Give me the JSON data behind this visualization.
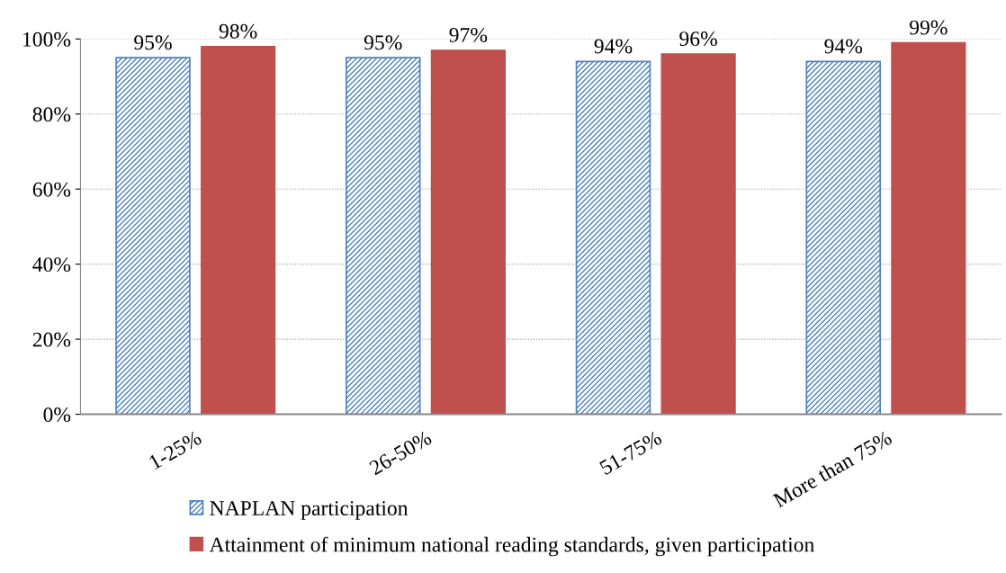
{
  "chart_data": {
    "type": "bar",
    "categories": [
      "1-25%",
      "26-50%",
      "51-75%",
      "More than 75%"
    ],
    "series": [
      {
        "name": "NAPLAN participation",
        "color": "#4f81bd",
        "values": [
          95,
          95,
          94,
          94
        ],
        "value_labels": [
          "95%",
          "95%",
          "94%",
          "94%"
        ]
      },
      {
        "name": "Attainment of minimum national reading standards, given participation",
        "color": "#c0504d",
        "values": [
          98,
          97,
          96,
          99
        ],
        "value_labels": [
          "98%",
          "97%",
          "96%",
          "99%"
        ]
      }
    ],
    "ylim": [
      0,
      100
    ],
    "yticks": [
      {
        "value": 0,
        "label": "0%"
      },
      {
        "value": 20,
        "label": "20%"
      },
      {
        "value": 40,
        "label": "40%"
      },
      {
        "value": 60,
        "label": "60%"
      },
      {
        "value": 80,
        "label": "80%"
      },
      {
        "value": 100,
        "label": "100%"
      }
    ],
    "grid": "y",
    "legend": "bottom"
  }
}
